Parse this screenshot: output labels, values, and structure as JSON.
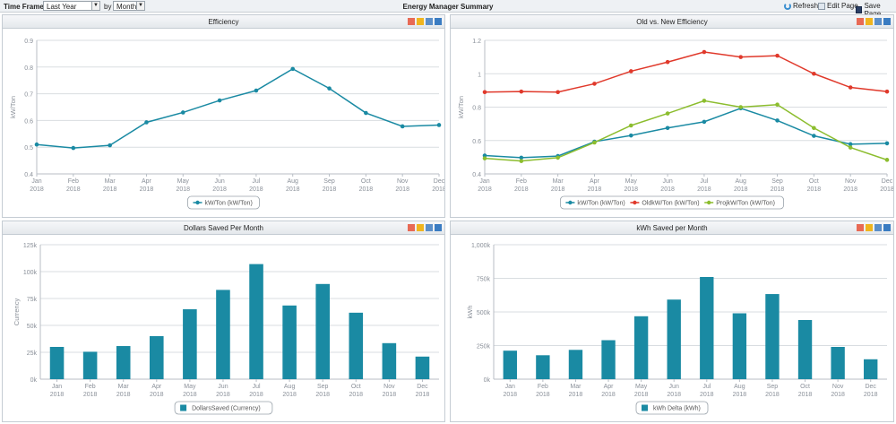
{
  "toolbar": {
    "timeframe_label": "Time Frame:",
    "timeframe_value": "Last Year",
    "by_label": "by",
    "by_value": "Month",
    "page_title": "Energy Manager Summary",
    "refresh_label": "Refresh",
    "edit_label": "Edit Page",
    "save_label": "Save Page"
  },
  "months": [
    "Jan",
    "Feb",
    "Mar",
    "Apr",
    "May",
    "Jun",
    "Jul",
    "Aug",
    "Sep",
    "Oct",
    "Nov",
    "Dec"
  ],
  "year": "2018",
  "chart_data": [
    {
      "id": "efficiency",
      "type": "line",
      "title": "Efficiency",
      "ylabel": "kW/Ton",
      "ylim": [
        0.4,
        0.9
      ],
      "yticks": [
        0.4,
        0.5,
        0.6,
        0.7,
        0.8,
        0.9
      ],
      "ytick_labels": [
        "0.4",
        "0.5",
        "0.6",
        "0.7",
        "0.8",
        "0.9"
      ],
      "grid": true,
      "legend_position": "bottom-center",
      "series": [
        {
          "name": "kW/Ton (kW/Ton)",
          "color": "#1a8aa3",
          "values": [
            0.51,
            0.497,
            0.507,
            0.593,
            0.63,
            0.675,
            0.712,
            0.793,
            0.72,
            0.628,
            0.578,
            0.583
          ]
        }
      ]
    },
    {
      "id": "old-vs-new",
      "type": "line",
      "title": "Old vs. New Efficiency",
      "ylabel": "kW/Ton",
      "ylim": [
        0.4,
        1.2
      ],
      "yticks": [
        0.4,
        0.6,
        0.8,
        1.0,
        1.2
      ],
      "ytick_labels": [
        "0.4",
        "0.6",
        "0.8",
        "1",
        "1.2"
      ],
      "grid": true,
      "legend_position": "bottom-center",
      "series": [
        {
          "name": "kW/Ton (kW/Ton)",
          "color": "#1a8aa3",
          "values": [
            0.51,
            0.497,
            0.507,
            0.593,
            0.63,
            0.675,
            0.712,
            0.793,
            0.72,
            0.628,
            0.578,
            0.583
          ]
        },
        {
          "name": "OldkW/Ton (kW/Ton)",
          "color": "#e0392b",
          "values": [
            0.89,
            0.893,
            0.89,
            0.94,
            1.015,
            1.07,
            1.13,
            1.1,
            1.108,
            1.0,
            0.918,
            0.893
          ]
        },
        {
          "name": "ProjkW/Ton (kW/Ton)",
          "color": "#8cbd2e",
          "values": [
            0.493,
            0.477,
            0.497,
            0.588,
            0.69,
            0.762,
            0.838,
            0.8,
            0.815,
            0.675,
            0.558,
            0.484
          ]
        }
      ]
    },
    {
      "id": "dollars-saved",
      "type": "bar",
      "title": "Dollars Saved Per Month",
      "ylabel": "Currency",
      "ylim": [
        0,
        125000
      ],
      "yticks": [
        0,
        25000,
        50000,
        75000,
        100000,
        125000
      ],
      "ytick_labels": [
        "0k",
        "25k",
        "50k",
        "75k",
        "100k",
        "125k"
      ],
      "grid": true,
      "legend_position": "bottom-center",
      "series": [
        {
          "name": "DollarsSaved (Currency)",
          "color": "#1a8aa3",
          "values": [
            30000,
            25500,
            30800,
            40000,
            65000,
            83000,
            107000,
            68500,
            88500,
            61800,
            33500,
            21000
          ]
        }
      ]
    },
    {
      "id": "kwh-saved",
      "type": "bar",
      "title": "kWh Saved per Month",
      "ylabel": "kWh",
      "ylim": [
        0,
        1000000
      ],
      "yticks": [
        0,
        250000,
        500000,
        750000,
        1000000
      ],
      "ytick_labels": [
        "0k",
        "250k",
        "500k",
        "750k",
        "1,000k"
      ],
      "grid": true,
      "legend_position": "bottom-center",
      "series": [
        {
          "name": "kWh Delta (kWh)",
          "color": "#1a8aa3",
          "values": [
            212000,
            178000,
            218000,
            290000,
            468000,
            592000,
            760000,
            490000,
            633000,
            440000,
            240000,
            148000
          ]
        }
      ]
    }
  ]
}
